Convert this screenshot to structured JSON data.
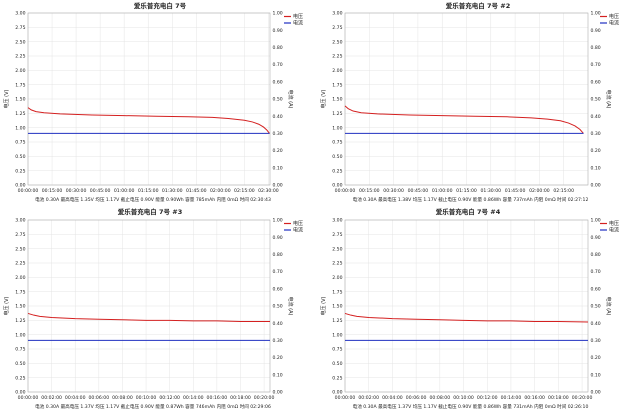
{
  "chart_data": [
    {
      "type": "line",
      "title": "爱乐普充电白 7号",
      "ylabel_left": "电压 (V)",
      "ylabel_right": "电流 (A)",
      "x_ticks": [
        "00:00:00",
        "00:15:00",
        "00:30:00",
        "00:45:00",
        "01:00:00",
        "01:15:00",
        "01:30:00",
        "01:45:00",
        "02:00:00",
        "02:15:00",
        "02:30:00"
      ],
      "x_range_min": [
        0,
        151
      ],
      "yleft_ticks": [
        "0.00",
        "0.25",
        "0.50",
        "0.75",
        "1.00",
        "1.25",
        "1.50",
        "1.75",
        "2.00",
        "2.25",
        "2.50",
        "2.75",
        "3.00"
      ],
      "yright_ticks": [
        "0.00",
        "0.10",
        "0.20",
        "0.30",
        "0.40",
        "0.50",
        "0.60",
        "0.70",
        "0.80",
        "0.90",
        "1.00"
      ],
      "ylim_left": [
        0,
        3
      ],
      "ylim_right": [
        0,
        1
      ],
      "legend": [
        "电压",
        "电流"
      ],
      "legend_position": "top-right",
      "series": [
        {
          "name": "电压",
          "axis": "left",
          "color": "#d42020",
          "x": [
            0,
            2,
            5,
            10,
            20,
            40,
            60,
            80,
            100,
            115,
            125,
            135,
            140,
            144,
            147,
            149,
            150.7
          ],
          "y": [
            1.35,
            1.31,
            1.28,
            1.26,
            1.24,
            1.22,
            1.21,
            1.2,
            1.19,
            1.18,
            1.16,
            1.13,
            1.1,
            1.06,
            1.01,
            0.96,
            0.9
          ]
        },
        {
          "name": "电流",
          "axis": "right",
          "color": "#2030c0",
          "x": [
            0,
            150.7
          ],
          "y": [
            0.3,
            0.3
          ]
        }
      ],
      "stats": "电池 0.30A 最高电压 1.35V 均压 1.17V 截止电压 0.90V 能量 0.90Wh 容量 785mAh 内阻 0mΩ 时间 02:30:43"
    },
    {
      "type": "line",
      "title": "爱乐普充电白 7号 #2",
      "ylabel_left": "电压 (V)",
      "ylabel_right": "电流 (A)",
      "x_ticks": [
        "00:00:00",
        "00:15:00",
        "00:30:00",
        "00:45:00",
        "01:00:00",
        "01:15:00",
        "01:30:00",
        "01:45:00",
        "02:00:00",
        "02:15:00"
      ],
      "x_range_min": [
        0,
        150
      ],
      "yleft_ticks": [
        "0.00",
        "0.25",
        "0.50",
        "0.75",
        "1.00",
        "1.25",
        "1.50",
        "1.75",
        "2.00",
        "2.25",
        "2.50",
        "2.75",
        "3.00"
      ],
      "yright_ticks": [
        "0.00",
        "0.10",
        "0.20",
        "0.30",
        "0.40",
        "0.50",
        "0.60",
        "0.70",
        "0.80",
        "0.90",
        "1.00"
      ],
      "ylim_left": [
        0,
        3
      ],
      "ylim_right": [
        0,
        1
      ],
      "legend": [
        "电压",
        "电流"
      ],
      "legend_position": "top-right",
      "series": [
        {
          "name": "电压",
          "axis": "left",
          "color": "#d42020",
          "x": [
            0,
            2,
            5,
            10,
            20,
            40,
            60,
            80,
            100,
            115,
            125,
            133,
            138,
            142,
            145,
            147.2
          ],
          "y": [
            1.38,
            1.33,
            1.29,
            1.26,
            1.24,
            1.22,
            1.21,
            1.2,
            1.19,
            1.17,
            1.15,
            1.12,
            1.08,
            1.03,
            0.97,
            0.9
          ]
        },
        {
          "name": "电流",
          "axis": "right",
          "color": "#2030c0",
          "x": [
            0,
            147.2
          ],
          "y": [
            0.3,
            0.3
          ]
        }
      ],
      "stats": "电池 0.30A 最高电压 1.38V 均压 1.17V 截止电压 0.90V 能量 0.86Wh 容量 737mAh 内阻 0mΩ 时间 02:27:12"
    },
    {
      "type": "line",
      "title": "爱乐普充电白 7号 #3",
      "ylabel_left": "电压 (V)",
      "ylabel_right": "电流 (A)",
      "x_ticks": [
        "00:00:00",
        "00:02:00",
        "00:04:00",
        "00:06:00",
        "00:08:00",
        "00:10:00",
        "00:12:00",
        "00:14:00",
        "00:16:00",
        "00:18:00",
        "00:20:00"
      ],
      "x_range_min": [
        0,
        20.5
      ],
      "yleft_ticks": [
        "0.00",
        "0.25",
        "0.50",
        "0.75",
        "1.00",
        "1.25",
        "1.50",
        "1.75",
        "2.00",
        "2.25",
        "2.50",
        "2.75",
        "3.00"
      ],
      "yright_ticks": [
        "0.00",
        "0.10",
        "0.20",
        "0.30",
        "0.40",
        "0.50",
        "0.60",
        "0.70",
        "0.80",
        "0.90",
        "1.00"
      ],
      "ylim_left": [
        0,
        3
      ],
      "ylim_right": [
        0,
        1
      ],
      "legend": [
        "电压",
        "电流"
      ],
      "legend_position": "top-right",
      "series": [
        {
          "name": "电压",
          "axis": "left",
          "color": "#d42020",
          "x": [
            0,
            0.5,
            1,
            2,
            4,
            6,
            8,
            10,
            12,
            14,
            16,
            18,
            20.5
          ],
          "y": [
            1.37,
            1.34,
            1.32,
            1.3,
            1.28,
            1.27,
            1.26,
            1.25,
            1.25,
            1.24,
            1.24,
            1.23,
            1.23
          ]
        },
        {
          "name": "电流",
          "axis": "right",
          "color": "#2030c0",
          "x": [
            0,
            20.5
          ],
          "y": [
            0.3,
            0.3
          ]
        }
      ],
      "stats": "电池 0.30A 最高电压 1.37V 均压 1.17V 截止电压 0.90V 能量 0.87Wh 容量 746mAh 内阻 0mΩ 时间 02:29:06"
    },
    {
      "type": "line",
      "title": "爱乐普充电白 7号 #4",
      "ylabel_left": "电压 (V)",
      "ylabel_right": "电流 (A)",
      "x_ticks": [
        "00:00:00",
        "00:02:00",
        "00:04:00",
        "00:06:00",
        "00:08:00",
        "00:10:00",
        "00:12:00",
        "00:14:00",
        "00:16:00",
        "00:18:00",
        "00:20:00"
      ],
      "x_range_min": [
        0,
        20.5
      ],
      "yleft_ticks": [
        "0.00",
        "0.25",
        "0.50",
        "0.75",
        "1.00",
        "1.25",
        "1.50",
        "1.75",
        "2.00",
        "2.25",
        "2.50",
        "2.75",
        "3.00"
      ],
      "yright_ticks": [
        "0.00",
        "0.10",
        "0.20",
        "0.30",
        "0.40",
        "0.50",
        "0.60",
        "0.70",
        "0.80",
        "0.90",
        "1.00"
      ],
      "ylim_left": [
        0,
        3
      ],
      "ylim_right": [
        0,
        1
      ],
      "legend": [
        "电压",
        "电流"
      ],
      "legend_position": "top-right",
      "series": [
        {
          "name": "电压",
          "axis": "left",
          "color": "#d42020",
          "x": [
            0,
            0.5,
            1,
            2,
            4,
            6,
            8,
            10,
            12,
            14,
            16,
            18,
            20.5
          ],
          "y": [
            1.37,
            1.34,
            1.32,
            1.3,
            1.28,
            1.27,
            1.26,
            1.25,
            1.24,
            1.24,
            1.23,
            1.23,
            1.22
          ]
        },
        {
          "name": "电流",
          "axis": "right",
          "color": "#2030c0",
          "x": [
            0,
            20.5
          ],
          "y": [
            0.3,
            0.3
          ]
        }
      ],
      "stats": "电池 0.30A 最高电压 1.37V 均压 1.17V 截止电压 0.90V 能量 0.86Wh 容量 731mAh 内阻 0mΩ 时间 02:26:10"
    }
  ]
}
